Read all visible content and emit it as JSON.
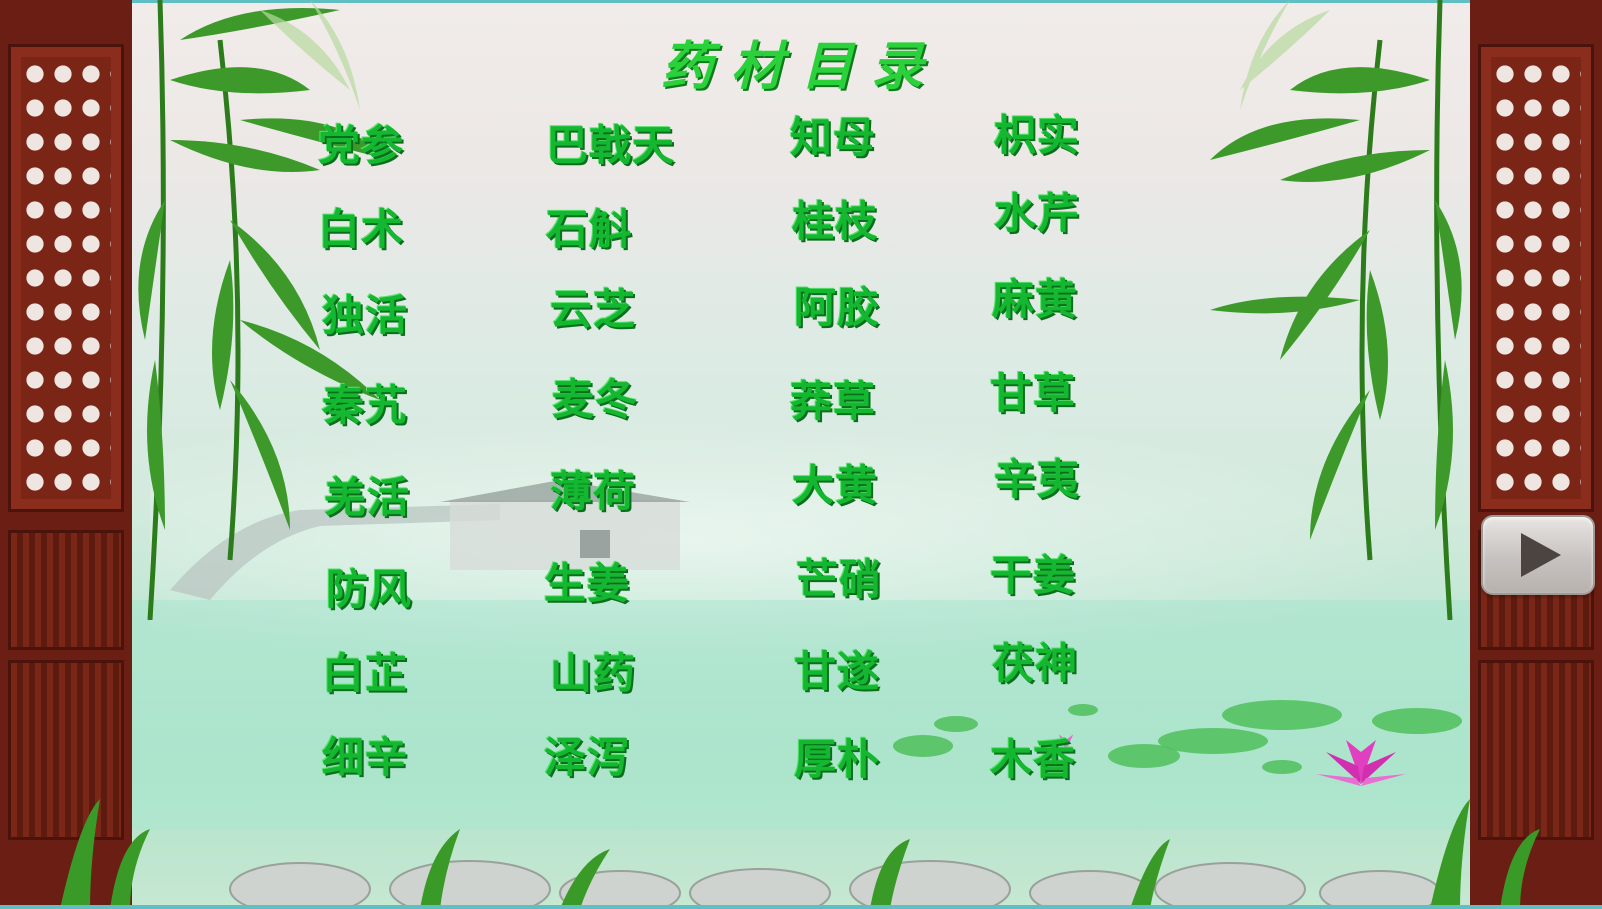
{
  "title": "药材目录",
  "herbs": [
    "党参",
    "巴戟天",
    "知母",
    "枳实",
    "白术",
    "石斛",
    "桂枝",
    "水芹",
    "独活",
    "云芝",
    "阿胶",
    "麻黄",
    "秦艽",
    "麦冬",
    "莽草",
    "甘草",
    "羌活",
    "薄荷",
    "大黄",
    "辛夷",
    "防风",
    "生姜",
    "芒硝",
    "干姜",
    "白芷",
    "山药",
    "甘遂",
    "茯神",
    "细辛",
    "泽泻",
    "厚朴",
    "木香"
  ],
  "colors": {
    "herb_text": "#13b830",
    "title_text": "#2ad13a",
    "frame": "#6b1f14"
  },
  "icons": {
    "next_button": "play-triangle-icon"
  }
}
